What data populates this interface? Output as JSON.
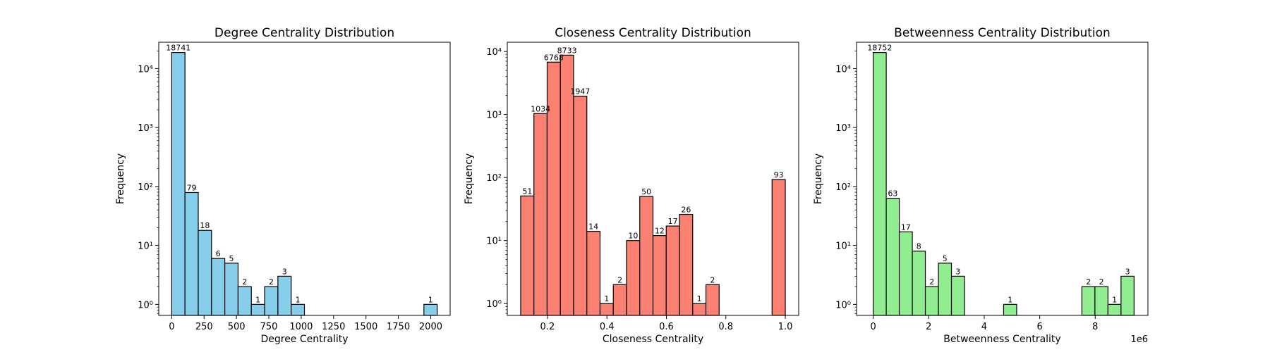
{
  "chart_data": [
    {
      "type": "bar",
      "title": "Degree Centrality Distribution",
      "xlabel": "Degree Centrality",
      "ylabel": "Frequency",
      "yscale": "log",
      "xlim": [
        -100,
        2150
      ],
      "ylim": [
        0.65,
        28000
      ],
      "color": "#87ceeb",
      "xticks": [
        0,
        250,
        500,
        750,
        1000,
        1250,
        1500,
        1750,
        2000
      ],
      "xtick_labels": [
        "0",
        "250",
        "500",
        "750",
        "1000",
        "1250",
        "1500",
        "1750",
        "2000"
      ],
      "yticks": [
        1,
        10,
        100,
        1000,
        10000
      ],
      "ytick_labels": [
        "10⁰",
        "10¹",
        "10²",
        "10³",
        "10⁴"
      ],
      "bin_edges": [
        0,
        102.5,
        205,
        307.5,
        410,
        512.5,
        615,
        717.5,
        820,
        922.5,
        1025,
        1127.5,
        1230,
        1332.5,
        1435,
        1537.5,
        1640,
        1742.5,
        1845,
        1947.5,
        2050
      ],
      "values": [
        18741,
        79,
        18,
        6,
        5,
        2,
        1,
        2,
        3,
        1,
        0,
        0,
        0,
        0,
        0,
        0,
        0,
        0,
        0,
        1
      ],
      "labels": [
        "18741",
        "79",
        "18",
        "6",
        "5",
        "2",
        "1",
        "2",
        "3",
        "1",
        "",
        "",
        "",
        "",
        "",
        "",
        "",
        "",
        "",
        "1"
      ]
    },
    {
      "type": "bar",
      "title": "Closeness Centrality Distribution",
      "xlabel": "Closeness Centrality",
      "ylabel": "Frequency",
      "yscale": "log",
      "xlim": [
        0.065,
        1.045
      ],
      "ylim": [
        0.65,
        14000
      ],
      "color": "#fa8072",
      "xticks": [
        0.2,
        0.4,
        0.6,
        0.8,
        1.0
      ],
      "xtick_labels": [
        "0.2",
        "0.4",
        "0.6",
        "0.8",
        "1.0"
      ],
      "yticks": [
        1,
        10,
        100,
        1000,
        10000
      ],
      "ytick_labels": [
        "10⁰",
        "10¹",
        "10²",
        "10³",
        "10⁴"
      ],
      "bin_edges": [
        0.11,
        0.1545,
        0.199,
        0.2435,
        0.288,
        0.3325,
        0.377,
        0.4215,
        0.466,
        0.5105,
        0.555,
        0.5995,
        0.644,
        0.6885,
        0.733,
        0.7775,
        0.822,
        0.8665,
        0.911,
        0.9555,
        1.0
      ],
      "values": [
        51,
        1034,
        6768,
        8733,
        1947,
        14,
        1,
        2,
        10,
        50,
        12,
        17,
        26,
        1,
        2,
        0,
        0,
        0,
        0,
        93
      ],
      "labels": [
        "51",
        "1034",
        "6768",
        "8733",
        "1947",
        "14",
        "1",
        "2",
        "10",
        "50",
        "12",
        "17",
        "26",
        "1",
        "2",
        "",
        "",
        "",
        "",
        "93"
      ]
    },
    {
      "type": "bar",
      "title": "Betweenness Centrality Distribution",
      "xlabel": "Betweenness Centrality",
      "ylabel": "Frequency",
      "yscale": "log",
      "x_offset_label": "1e6",
      "xlim": [
        -0.6,
        9.9
      ],
      "ylim": [
        0.65,
        28000
      ],
      "color": "#90ee90",
      "xticks": [
        0,
        2,
        4,
        6,
        8
      ],
      "xtick_labels": [
        "0",
        "2",
        "4",
        "6",
        "8"
      ],
      "yticks": [
        1,
        10,
        100,
        1000,
        10000
      ],
      "ytick_labels": [
        "10⁰",
        "10¹",
        "10²",
        "10³",
        "10⁴"
      ],
      "bin_edges": [
        0,
        0.47,
        0.94,
        1.41,
        1.88,
        2.35,
        2.82,
        3.29,
        3.76,
        4.23,
        4.7,
        5.17,
        5.64,
        6.11,
        6.58,
        7.05,
        7.52,
        7.99,
        8.46,
        8.93,
        9.4
      ],
      "values": [
        18752,
        63,
        17,
        8,
        2,
        5,
        3,
        0,
        0,
        0,
        1,
        0,
        0,
        0,
        0,
        0,
        2,
        2,
        1,
        3
      ],
      "labels": [
        "18752",
        "63",
        "17",
        "8",
        "2",
        "5",
        "3",
        "",
        "",
        "",
        "1",
        "",
        "",
        "",
        "",
        "",
        "2",
        "2",
        "1",
        "3"
      ]
    }
  ]
}
